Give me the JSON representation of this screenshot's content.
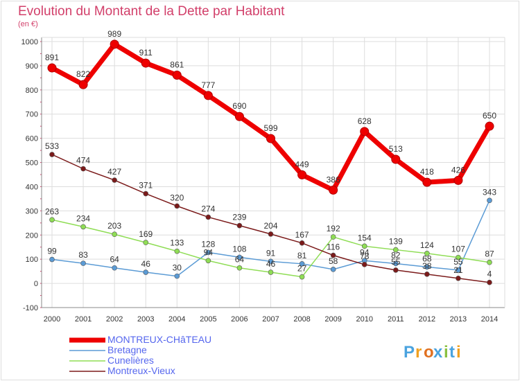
{
  "chart_data": {
    "type": "line",
    "title": "Evolution du Montant de la Dette par Habitant",
    "subtitle": "(en €)",
    "xlabel": "",
    "ylabel": "",
    "ylim": [
      -100,
      1000
    ],
    "yticks": [
      -100,
      0,
      100,
      200,
      300,
      400,
      500,
      600,
      700,
      800,
      900,
      1000
    ],
    "grid": true,
    "legend_position": "bottom-left",
    "categories": [
      "2000",
      "2001",
      "2002",
      "2003",
      "2004",
      "2005",
      "2006",
      "2007",
      "2008",
      "2009",
      "2010",
      "2011",
      "2012",
      "2013",
      "2014"
    ],
    "series": [
      {
        "name": "MONTREUX-CHâTEAU",
        "color": "#ee0000",
        "values": [
          891,
          822,
          989,
          911,
          861,
          777,
          690,
          599,
          449,
          386,
          628,
          513,
          418,
          426,
          650
        ]
      },
      {
        "name": "Bretagne",
        "color": "#5b9bd5",
        "values": [
          99,
          83,
          64,
          46,
          30,
          128,
          108,
          91,
          81,
          58,
          94,
          82,
          68,
          55,
          343
        ]
      },
      {
        "name": "Cunelières",
        "color": "#8fdd55",
        "values": [
          263,
          234,
          203,
          169,
          133,
          94,
          64,
          46,
          27,
          192,
          154,
          139,
          124,
          107,
          87
        ]
      },
      {
        "name": "Montreux-Vieux",
        "color": "#7b1a1a",
        "values": [
          533,
          474,
          427,
          371,
          320,
          274,
          239,
          204,
          167,
          116,
          78,
          55,
          38,
          21,
          4
        ]
      }
    ]
  },
  "colors": {
    "title": "#d23f6a",
    "legend_text": "#5566ee",
    "axis": "#888888",
    "grid": "#dddddd"
  },
  "logo": {
    "text": "Proxiti"
  }
}
